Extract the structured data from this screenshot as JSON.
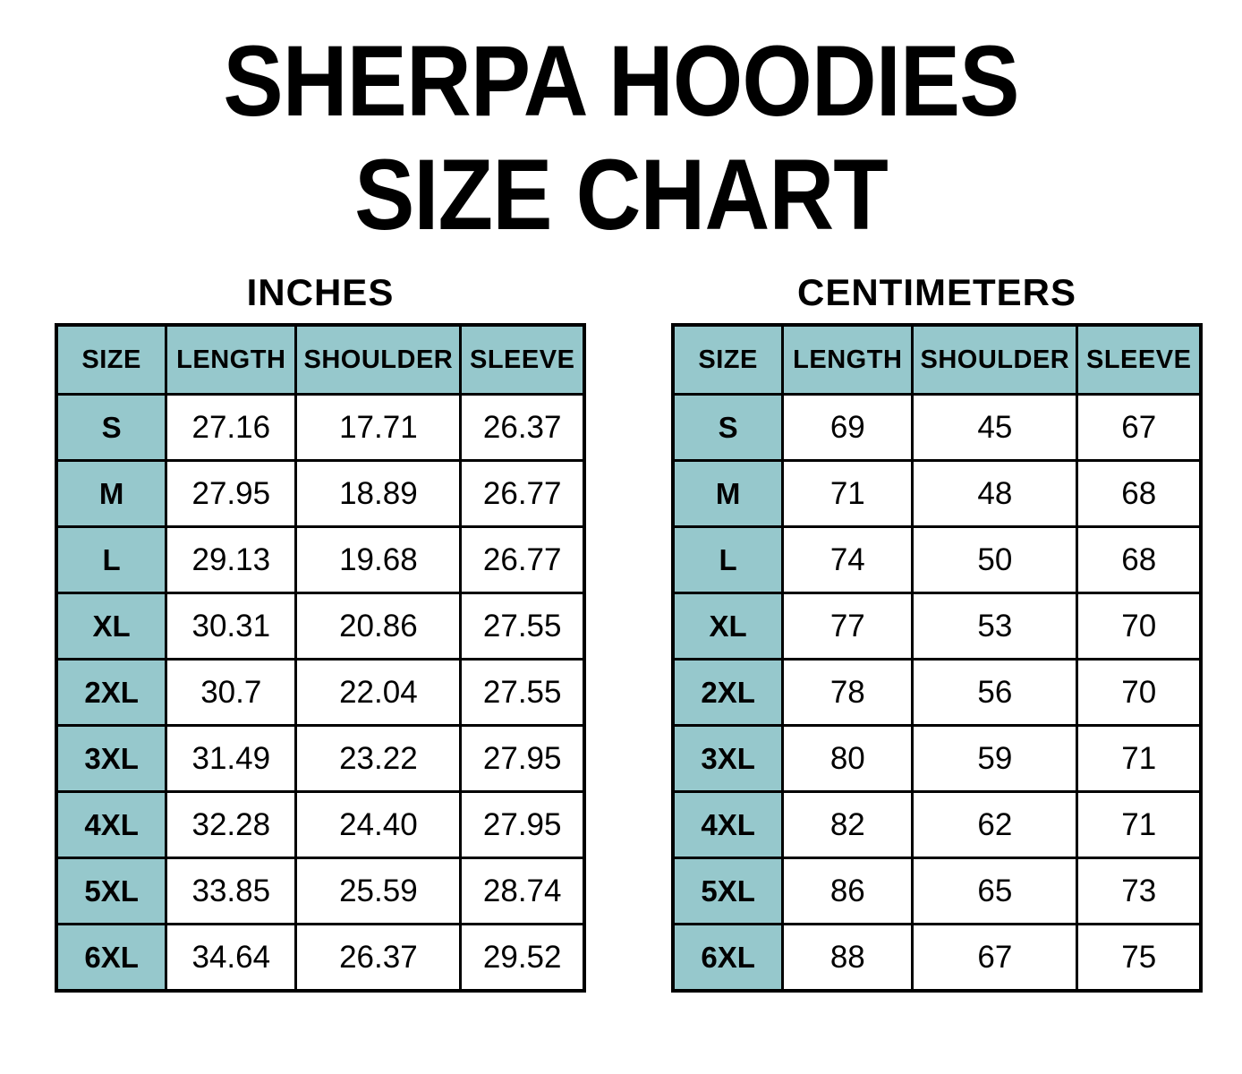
{
  "title": {
    "line1": "SHERPA HOODIES",
    "line2": "SIZE CHART"
  },
  "colors": {
    "header_fill": "#96C8CC",
    "border": "#000000",
    "text": "#000000",
    "background": "#FFFFFF"
  },
  "chart_data": [
    {
      "type": "table",
      "title": "INCHES",
      "columns": [
        "SIZE",
        "LENGTH",
        "SHOULDER",
        "SLEEVE"
      ],
      "rows": [
        [
          "S",
          "27.16",
          "17.71",
          "26.37"
        ],
        [
          "M",
          "27.95",
          "18.89",
          "26.77"
        ],
        [
          "L",
          "29.13",
          "19.68",
          "26.77"
        ],
        [
          "XL",
          "30.31",
          "20.86",
          "27.55"
        ],
        [
          "2XL",
          "30.7",
          "22.04",
          "27.55"
        ],
        [
          "3XL",
          "31.49",
          "23.22",
          "27.95"
        ],
        [
          "4XL",
          "32.28",
          "24.40",
          "27.95"
        ],
        [
          "5XL",
          "33.85",
          "25.59",
          "28.74"
        ],
        [
          "6XL",
          "34.64",
          "26.37",
          "29.52"
        ]
      ]
    },
    {
      "type": "table",
      "title": "CENTIMETERS",
      "columns": [
        "SIZE",
        "LENGTH",
        "SHOULDER",
        "SLEEVE"
      ],
      "rows": [
        [
          "S",
          "69",
          "45",
          "67"
        ],
        [
          "M",
          "71",
          "48",
          "68"
        ],
        [
          "L",
          "74",
          "50",
          "68"
        ],
        [
          "XL",
          "77",
          "53",
          "70"
        ],
        [
          "2XL",
          "78",
          "56",
          "70"
        ],
        [
          "3XL",
          "80",
          "59",
          "71"
        ],
        [
          "4XL",
          "82",
          "62",
          "71"
        ],
        [
          "5XL",
          "86",
          "65",
          "73"
        ],
        [
          "6XL",
          "88",
          "67",
          "75"
        ]
      ]
    }
  ]
}
